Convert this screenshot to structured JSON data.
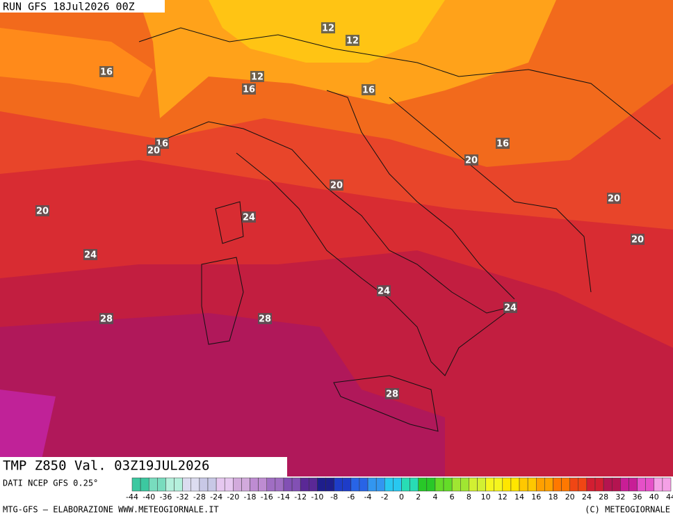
{
  "map": {
    "run": "RUN GFS 18Jul2026 00Z",
    "field": "TMP Z850 Val. 03Z19JUL2026",
    "source": "DATI NCEP GFS 0.25°",
    "footer_left": "MTG-GFS — ELABORAZIONE WWW.METEOGIORNALE.IT",
    "footer_right": "(C) METEOGIORNALE",
    "contour_labels": [
      12,
      12,
      16,
      12,
      16,
      16,
      16,
      20,
      16,
      20,
      20,
      20,
      20,
      24,
      20,
      24,
      24,
      24,
      28,
      28,
      28
    ],
    "legend": {
      "ticks": [
        -44,
        -40,
        -36,
        -32,
        -28,
        -24,
        -20,
        -18,
        -16,
        -14,
        -12,
        -10,
        -8,
        -6,
        -4,
        -2,
        0,
        2,
        4,
        6,
        8,
        10,
        12,
        14,
        16,
        18,
        20,
        24,
        28,
        32,
        36,
        40,
        44
      ],
      "colors": [
        "#3cc8a0",
        "#78dcbe",
        "#b4f0dc",
        "#dcdcf0",
        "#c8c8e6",
        "#e6c8f0",
        "#d2aadc",
        "#be8cd2",
        "#a06ec3",
        "#8250b4",
        "#5a2896",
        "#1e1e8c",
        "#1e3cc8",
        "#2864e6",
        "#3296f0",
        "#28c8f0",
        "#28dcb4",
        "#28c828",
        "#64dc28",
        "#a0e632",
        "#d2f032",
        "#f5f51e",
        "#ffe600",
        "#ffc800",
        "#ffa000",
        "#ff7800",
        "#f04614",
        "#d21e32",
        "#b41450",
        "#c81e96",
        "#e650c8",
        "#f5a0e6"
      ]
    }
  }
}
